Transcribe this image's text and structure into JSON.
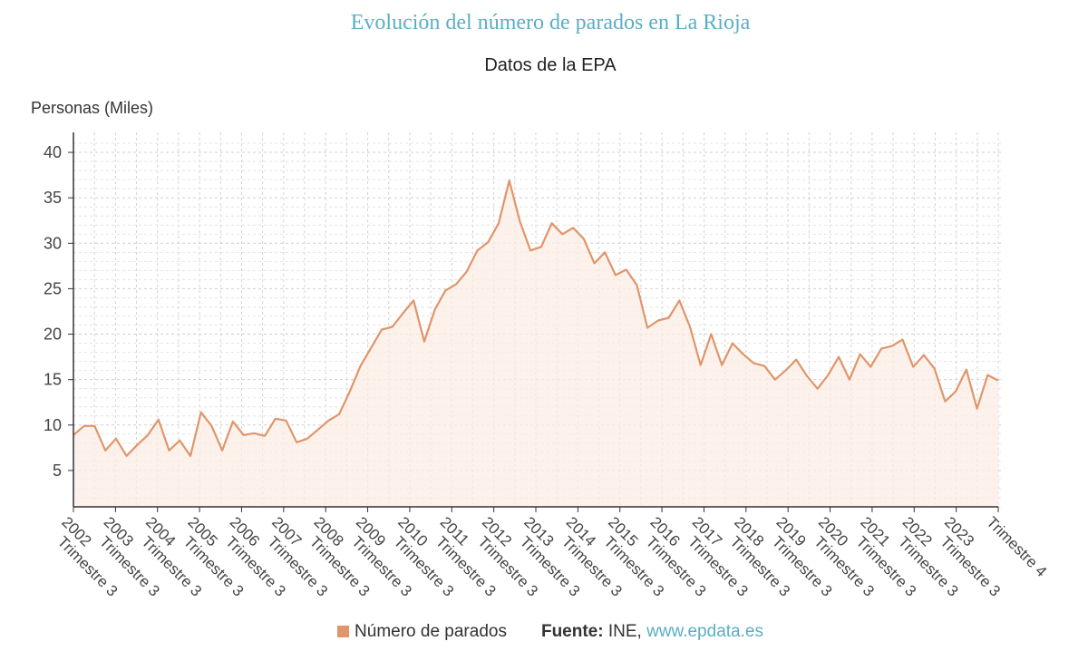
{
  "chart_data": {
    "type": "area",
    "title": "Evolución del número de parados en La Rioja",
    "subtitle": "Datos de la EPA",
    "ylabel": "Personas (Miles)",
    "ylim": [
      1,
      42
    ],
    "yticks": [
      5,
      10,
      15,
      20,
      25,
      30,
      35,
      40
    ],
    "grid": true,
    "x_tick_labels": [
      "2002 Trimestre 3",
      "2003 Trimestre 3",
      "2004 Trimestre 3",
      "2005 Trimestre 3",
      "2006 Trimestre 3",
      "2007 Trimestre 3",
      "2008 Trimestre 3",
      "2009 Trimestre 3",
      "2010 Trimestre 3",
      "2011 Trimestre 3",
      "2012 Trimestre 3",
      "2013 Trimestre 3",
      "2014 Trimestre 3",
      "2015 Trimestre 3",
      "2016 Trimestre 3",
      "2017 Trimestre 3",
      "2018 Trimestre 3",
      "2019 Trimestre 3",
      "2020 Trimestre 3",
      "2021 Trimestre 3",
      "2022 Trimestre 3",
      "2023 Trimestre 3",
      "Trimestre 4"
    ],
    "series": [
      {
        "name": "Número de parados",
        "color": "#e0956a",
        "values": [
          8.9,
          9.9,
          9.9,
          7.2,
          8.5,
          6.6,
          7.8,
          8.9,
          10.6,
          7.2,
          8.3,
          6.6,
          11.4,
          9.9,
          7.2,
          10.4,
          8.9,
          9.1,
          8.8,
          10.7,
          10.5,
          8.1,
          8.5,
          9.5,
          10.5,
          11.2,
          13.7,
          16.5,
          18.5,
          20.5,
          20.8,
          22.3,
          23.7,
          19.2,
          22.7,
          24.8,
          25.5,
          26.9,
          29.2,
          30.1,
          32.2,
          36.9,
          32.4,
          29.2,
          29.6,
          32.2,
          31.0,
          31.7,
          30.5,
          27.8,
          29.0,
          26.5,
          27.1,
          25.4,
          20.7,
          21.5,
          21.8,
          23.7,
          20.8,
          16.6,
          20.0,
          16.6,
          19.0,
          17.8,
          16.8,
          16.5,
          15.0,
          16.0,
          17.2,
          15.4,
          14.0,
          15.5,
          17.5,
          15.0,
          17.8,
          16.4,
          18.4,
          18.7,
          19.4,
          16.4,
          17.7,
          16.2,
          12.6,
          13.7,
          16.1,
          11.8,
          15.5,
          14.9
        ]
      }
    ],
    "legend_position": "bottom"
  },
  "source": {
    "label": "Fuente:",
    "name": "INE,",
    "link": "www.epdata.es"
  }
}
